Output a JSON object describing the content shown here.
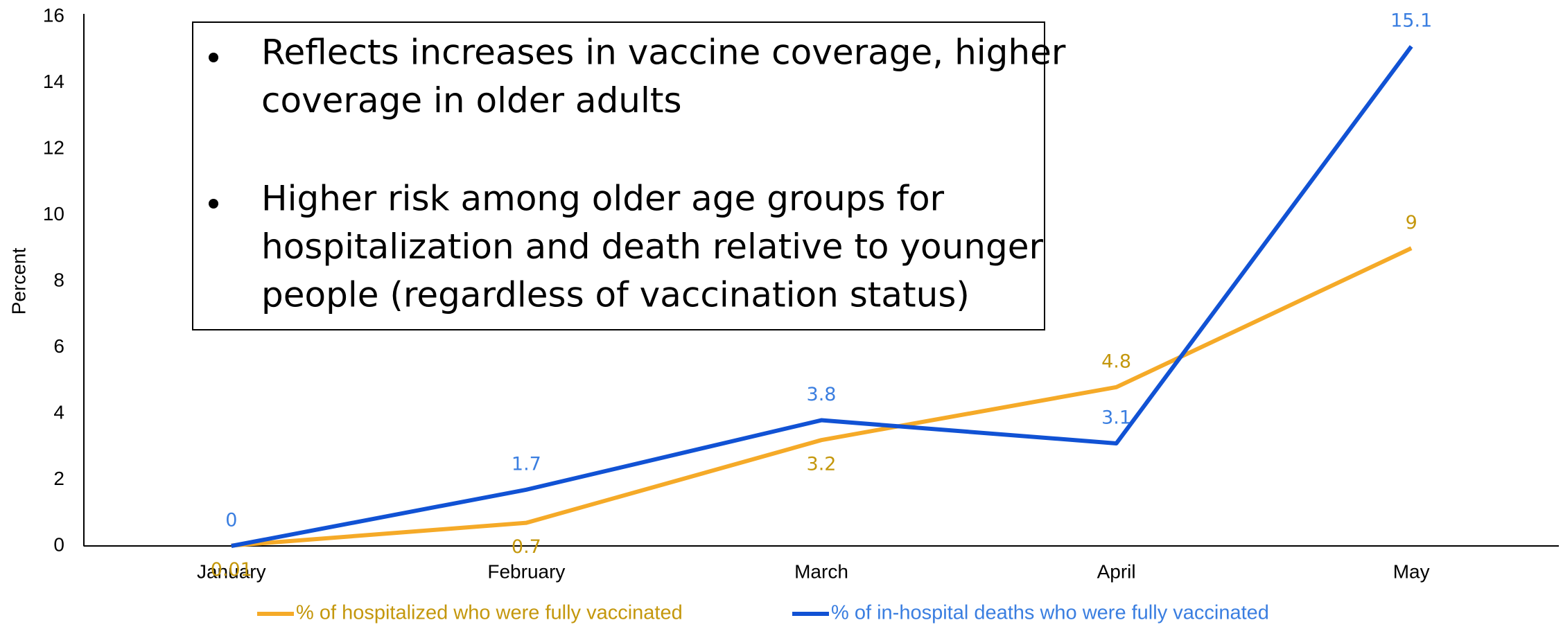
{
  "chart_data": {
    "type": "line",
    "y_label": "Percent",
    "categories": [
      "January",
      "February",
      "March",
      "April",
      "May"
    ],
    "series": [
      {
        "name": "% of hospitalized who were fully vaccinated",
        "color": "#f5aa28",
        "label_color": "#c4970c",
        "values": [
          0.01,
          0.7,
          3.2,
          4.8,
          9
        ]
      },
      {
        "name": "% of in-hospital deaths who were fully vaccinated",
        "color": "#1152d4",
        "label_color": "#3a7ee0",
        "values": [
          0,
          1.7,
          3.8,
          3.1,
          15.1
        ]
      }
    ],
    "ylim": [
      0,
      16
    ],
    "yticks": [
      0,
      2,
      4,
      6,
      8,
      10,
      12,
      14,
      16
    ],
    "grid": false,
    "legend": "bottom",
    "annotations": [
      [
        "Reflects increases in vaccine coverage, higher",
        "coverage in older adults"
      ],
      [
        "Higher risk among older age groups for",
        "hospitalization and death relative to younger",
        "people (regardless of vaccination status)"
      ]
    ]
  }
}
